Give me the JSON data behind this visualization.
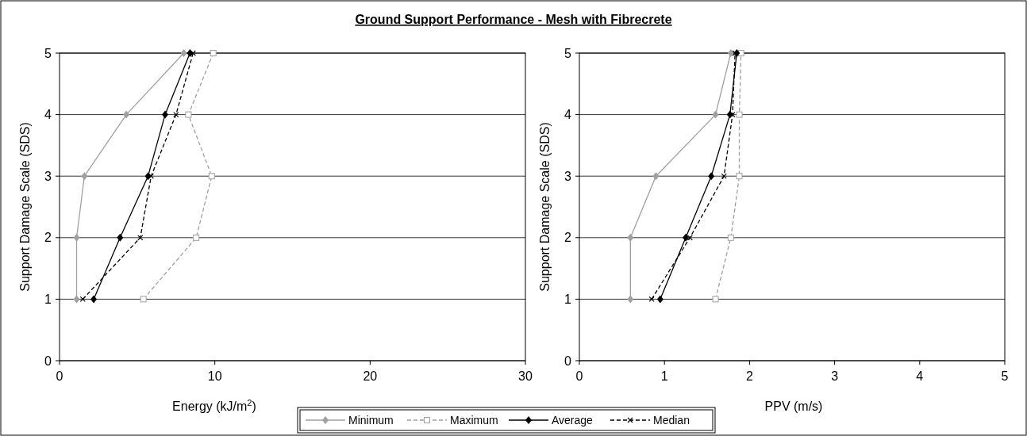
{
  "chart_data": [
    {
      "type": "line",
      "title": "Ground Support Performance - Mesh with Fibrecrete",
      "xlabel": "Energy (kJ/m$^{2}$)",
      "ylabel": "Support Damage Scale (SDS)",
      "xlim": [
        0,
        30
      ],
      "xticks": [
        0,
        10,
        20,
        30
      ],
      "ylim": [
        0,
        5
      ],
      "yticks": [
        0,
        1,
        2,
        3,
        4,
        5
      ],
      "grid": "y",
      "legend": "bottom",
      "series": [
        {
          "name": "Minimum",
          "color": "#a0a0a0",
          "marker": "diamond",
          "line_style": "solid",
          "x": [
            1.1,
            1.1,
            1.6,
            4.3,
            8.0
          ],
          "values": [
            1,
            2,
            3,
            4,
            5
          ]
        },
        {
          "name": "Maximum",
          "color": "#a0a0a0",
          "marker": "square",
          "line_style": "dashed",
          "x": [
            5.4,
            8.8,
            9.8,
            8.3,
            9.9
          ],
          "values": [
            1,
            2,
            3,
            4,
            5
          ]
        },
        {
          "name": "Average",
          "color": "#000000",
          "marker": "diamond",
          "line_style": "solid",
          "x": [
            2.2,
            3.9,
            5.7,
            6.8,
            8.4
          ],
          "values": [
            1,
            2,
            3,
            4,
            5
          ]
        },
        {
          "name": "Median",
          "color": "#000000",
          "marker": "cross",
          "line_style": "dashed",
          "x": [
            1.5,
            5.2,
            5.9,
            7.5,
            8.6
          ],
          "values": [
            1,
            2,
            3,
            4,
            5
          ]
        }
      ]
    },
    {
      "type": "line",
      "xlabel": "PPV (m/s)",
      "ylabel": "Support Damage Scale (SDS)",
      "xlim": [
        0,
        5
      ],
      "xticks": [
        0,
        1,
        2,
        3,
        4,
        5
      ],
      "ylim": [
        0,
        5
      ],
      "yticks": [
        0,
        1,
        2,
        3,
        4,
        5
      ],
      "grid": "y",
      "series": [
        {
          "name": "Minimum",
          "color": "#a0a0a0",
          "marker": "diamond",
          "line_style": "solid",
          "x": [
            0.6,
            0.6,
            0.9,
            1.6,
            1.78
          ],
          "values": [
            1,
            2,
            3,
            4,
            5
          ]
        },
        {
          "name": "Maximum",
          "color": "#a0a0a0",
          "marker": "square",
          "line_style": "dashed",
          "x": [
            1.6,
            1.78,
            1.88,
            1.88,
            1.9
          ],
          "values": [
            1,
            2,
            3,
            4,
            5
          ]
        },
        {
          "name": "Average",
          "color": "#000000",
          "marker": "diamond",
          "line_style": "solid",
          "x": [
            0.95,
            1.25,
            1.55,
            1.77,
            1.85
          ],
          "values": [
            1,
            2,
            3,
            4,
            5
          ]
        },
        {
          "name": "Median",
          "color": "#000000",
          "marker": "cross",
          "line_style": "dashed",
          "x": [
            0.85,
            1.3,
            1.7,
            1.8,
            1.83
          ],
          "values": [
            1,
            2,
            3,
            4,
            5
          ]
        }
      ]
    }
  ]
}
